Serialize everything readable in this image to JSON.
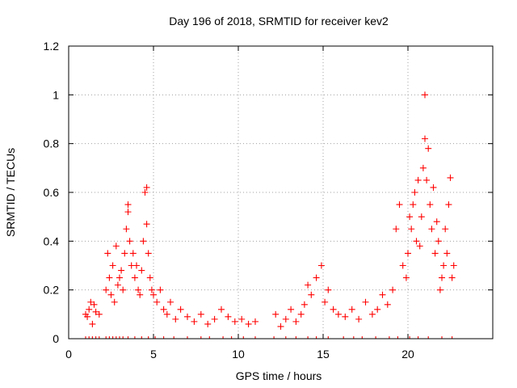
{
  "chart_data": {
    "type": "scatter",
    "title": "Day 196 of 2018, SRMTID for receiver kev2",
    "xlabel": "GPS time / hours",
    "ylabel": "SRMTID / TECUs",
    "xlim": [
      0,
      25
    ],
    "ylim": [
      0,
      1.2
    ],
    "xticks": [
      0,
      5,
      10,
      15,
      20
    ],
    "xtick_labels": [
      "0",
      "5",
      "10",
      "15",
      "20"
    ],
    "yticks": [
      0,
      0.2,
      0.4,
      0.6,
      0.8,
      1.0,
      1.2
    ],
    "ytick_labels": [
      "0",
      "0.2",
      "0.4",
      "0.6",
      "0.8",
      "1",
      "1.2"
    ],
    "grid": true,
    "marker": "+",
    "series": [
      {
        "name": "kev2",
        "color": "#ff0000",
        "x": [
          1.0,
          1.1,
          1.2,
          1.3,
          1.4,
          1.5,
          1.6,
          1.8,
          2.2,
          2.3,
          2.4,
          2.5,
          2.6,
          2.7,
          2.8,
          2.9,
          3.0,
          3.1,
          3.2,
          3.3,
          3.4,
          3.5,
          3.5,
          3.6,
          3.7,
          3.8,
          3.9,
          4.0,
          4.1,
          4.2,
          4.3,
          4.4,
          4.5,
          4.6,
          4.6,
          4.7,
          4.8,
          4.9,
          5.0,
          5.2,
          5.4,
          5.6,
          5.8,
          6.0,
          6.3,
          6.6,
          7.0,
          7.4,
          7.8,
          8.2,
          8.6,
          9.0,
          9.4,
          9.8,
          10.2,
          10.6,
          11.0,
          12.2,
          12.5,
          12.8,
          13.1,
          13.4,
          13.7,
          13.9,
          14.1,
          14.3,
          14.6,
          14.9,
          15.1,
          15.3,
          15.6,
          15.9,
          16.3,
          16.7,
          17.1,
          17.5,
          17.9,
          18.2,
          18.5,
          18.8,
          19.1,
          19.3,
          19.5,
          19.7,
          19.9,
          20.0,
          20.1,
          20.2,
          20.3,
          20.4,
          20.5,
          20.6,
          20.7,
          20.8,
          20.9,
          21.0,
          21.0,
          21.1,
          21.2,
          21.3,
          21.4,
          21.5,
          21.6,
          21.7,
          21.8,
          21.9,
          22.0,
          22.1,
          22.2,
          22.3,
          22.4,
          22.5,
          22.6,
          22.7
        ],
        "y": [
          0.1,
          0.09,
          0.12,
          0.15,
          0.06,
          0.14,
          0.11,
          0.1,
          0.2,
          0.35,
          0.25,
          0.18,
          0.3,
          0.15,
          0.38,
          0.22,
          0.25,
          0.28,
          0.2,
          0.35,
          0.45,
          0.55,
          0.52,
          0.4,
          0.3,
          0.35,
          0.25,
          0.3,
          0.2,
          0.18,
          0.28,
          0.4,
          0.6,
          0.62,
          0.47,
          0.35,
          0.25,
          0.2,
          0.18,
          0.15,
          0.2,
          0.12,
          0.1,
          0.15,
          0.08,
          0.12,
          0.09,
          0.07,
          0.1,
          0.06,
          0.08,
          0.12,
          0.09,
          0.07,
          0.08,
          0.06,
          0.07,
          0.1,
          0.05,
          0.08,
          0.12,
          0.07,
          0.1,
          0.14,
          0.22,
          0.18,
          0.25,
          0.3,
          0.15,
          0.2,
          0.12,
          0.1,
          0.09,
          0.12,
          0.08,
          0.15,
          0.1,
          0.12,
          0.18,
          0.14,
          0.2,
          0.45,
          0.55,
          0.3,
          0.25,
          0.35,
          0.5,
          0.45,
          0.55,
          0.6,
          0.4,
          0.65,
          0.38,
          0.5,
          0.7,
          0.82,
          1.0,
          0.65,
          0.78,
          0.55,
          0.45,
          0.62,
          0.35,
          0.48,
          0.4,
          0.2,
          0.25,
          0.3,
          0.45,
          0.35,
          0.55,
          0.66,
          0.25,
          0.3
        ],
        "zero_markers_x": [
          1.0,
          1.2,
          1.4,
          1.6,
          1.8,
          2.2,
          2.4,
          2.6,
          2.8,
          3.0,
          3.2,
          3.5,
          3.9,
          4.3,
          4.7,
          5.1,
          5.6,
          6.2,
          7.0,
          7.8,
          8.3,
          9.1,
          9.6,
          10.3,
          11.0,
          12.1,
          12.8,
          13.4,
          14.1,
          14.6,
          15.3,
          16.2,
          16.8,
          17.3,
          18.1,
          18.9,
          19.4,
          20.1,
          20.6,
          21.2,
          22.0,
          22.6
        ]
      }
    ]
  }
}
